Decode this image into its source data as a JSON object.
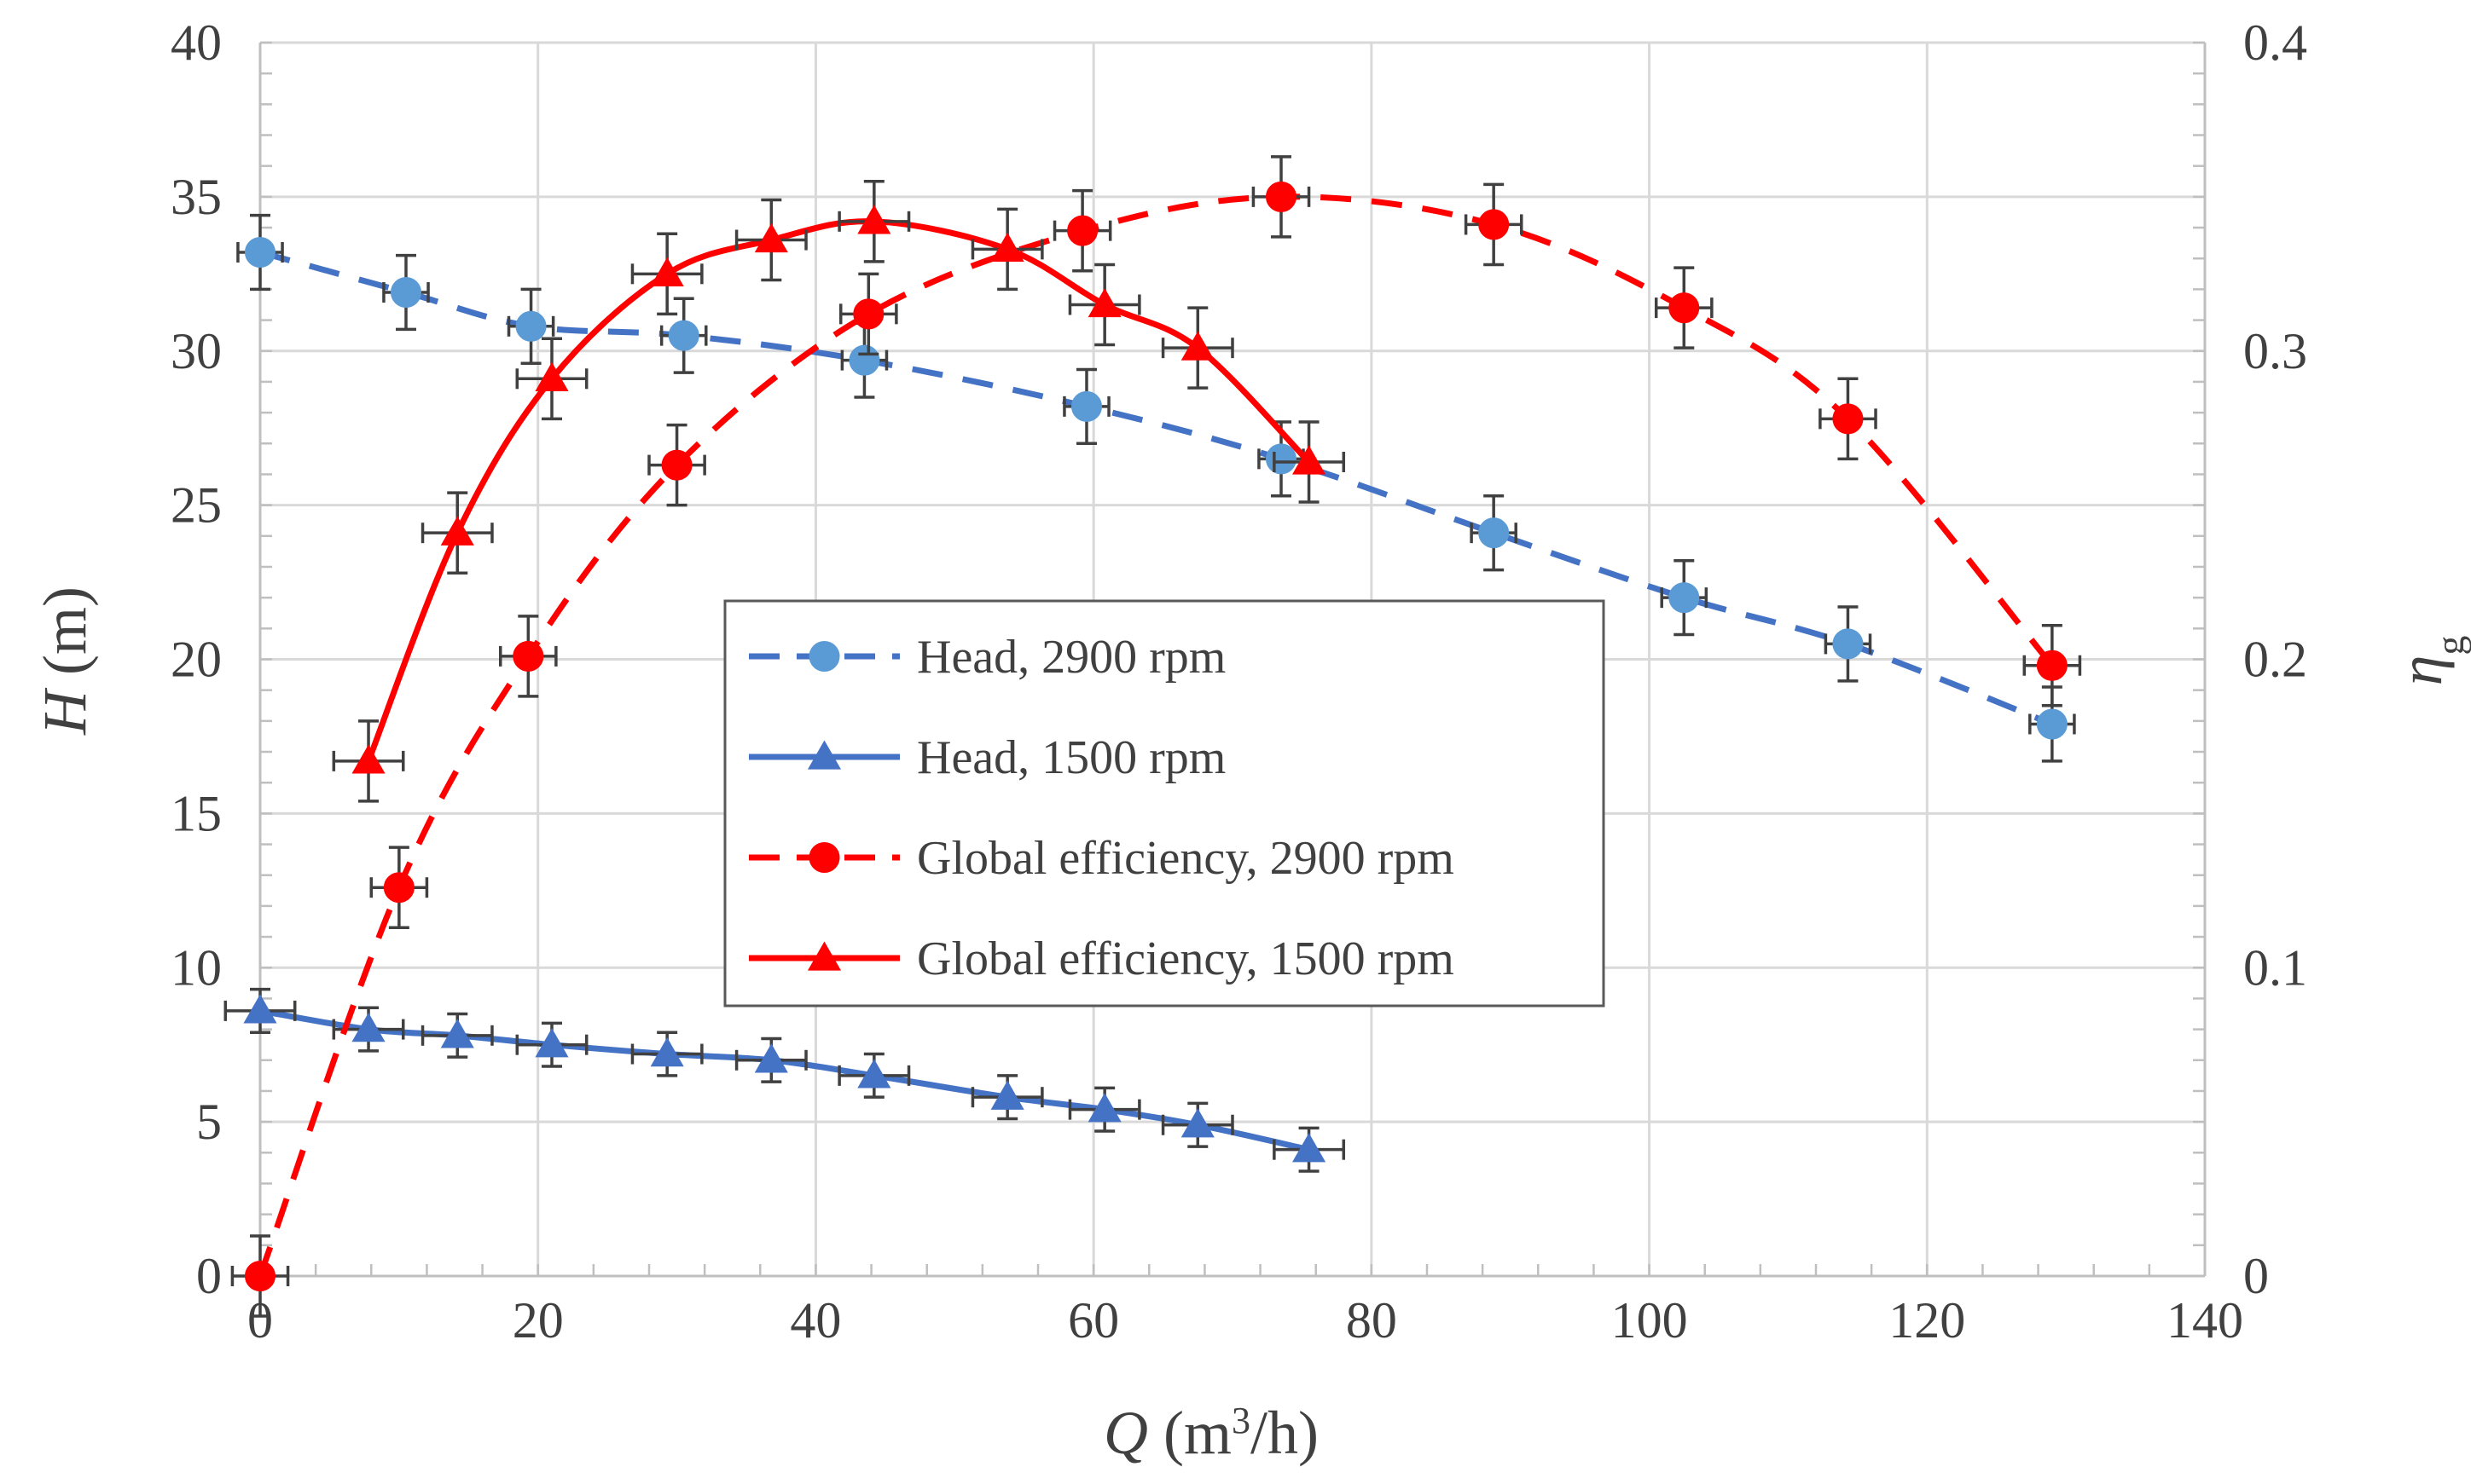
{
  "chart_data": {
    "type": "line",
    "xlabel": {
      "italic": "Q",
      "rest": " (m",
      "sup": "3",
      "tail": "/h)"
    },
    "ylabel": {
      "italic": "H",
      "rest": " (m)"
    },
    "y2label": {
      "main": "η",
      "sub": "g"
    },
    "xlim": [
      0,
      140
    ],
    "ylim": [
      0,
      40
    ],
    "y2lim": [
      0,
      0.4
    ],
    "xticks": [
      "0",
      "20",
      "40",
      "60",
      "80",
      "100",
      "120",
      "140"
    ],
    "yticks": [
      "0",
      "5",
      "10",
      "15",
      "20",
      "25",
      "30",
      "35",
      "40"
    ],
    "y2ticks": [
      "0",
      "0.1",
      "0.2",
      "0.3",
      "0.4"
    ],
    "grid": true,
    "legend_position": "center",
    "colors": {
      "blue": "#4472c4",
      "blue_marker": "#5b9bd5",
      "red": "#ff0000",
      "error_bar": "#404040",
      "grid": "#d9d9d9",
      "axis": "#bfbfbf"
    },
    "series": [
      {
        "name": "Head, 2900 rpm",
        "axis": "left",
        "color": "#4472c4",
        "marker_color": "#5b9bd5",
        "marker": "circle",
        "dash": true,
        "x": [
          0,
          10.5,
          19.5,
          30.5,
          43.5,
          59.5,
          73.5,
          88.8,
          102.5,
          114.3,
          129
        ],
        "y": [
          33.2,
          31.9,
          30.8,
          30.5,
          29.7,
          28.2,
          26.5,
          24.1,
          22.0,
          20.5,
          17.9
        ],
        "xerr": 1.6,
        "yerr": 1.2
      },
      {
        "name": "Head, 1500 rpm",
        "axis": "left",
        "color": "#4472c4",
        "marker_color": "#4472c4",
        "marker": "triangle",
        "dash": false,
        "x": [
          0,
          7.8,
          14.2,
          21,
          29.3,
          36.8,
          44.2,
          53.8,
          60.8,
          67.5,
          75.5
        ],
        "y": [
          8.6,
          8.0,
          7.8,
          7.5,
          7.2,
          7.0,
          6.5,
          5.8,
          5.4,
          4.9,
          4.1
        ],
        "xerr": 2.5,
        "yerr": 0.7
      },
      {
        "name": "Global efficiency, 2900 rpm",
        "axis": "right",
        "color": "#ff0000",
        "marker_color": "#ff0000",
        "marker": "circle",
        "dash": true,
        "x": [
          0,
          10,
          19.3,
          30,
          43.8,
          59.2,
          73.5,
          88.8,
          102.5,
          114.3,
          129
        ],
        "y": [
          0,
          0.126,
          0.201,
          0.263,
          0.312,
          0.339,
          0.35,
          0.341,
          0.314,
          0.278,
          0.198
        ],
        "xerr": 2.0,
        "yerr": 0.013
      },
      {
        "name": "Global efficiency, 1500 rpm",
        "axis": "right",
        "color": "#ff0000",
        "marker_color": "#ff0000",
        "marker": "triangle",
        "dash": false,
        "x": [
          7.8,
          14.2,
          21,
          29.3,
          36.8,
          44.2,
          53.8,
          60.8,
          67.5,
          75.5
        ],
        "y": [
          0.167,
          0.241,
          0.291,
          0.325,
          0.336,
          0.342,
          0.333,
          0.315,
          0.301,
          0.264
        ],
        "xerr": 2.5,
        "yerr": 0.013
      }
    ]
  }
}
